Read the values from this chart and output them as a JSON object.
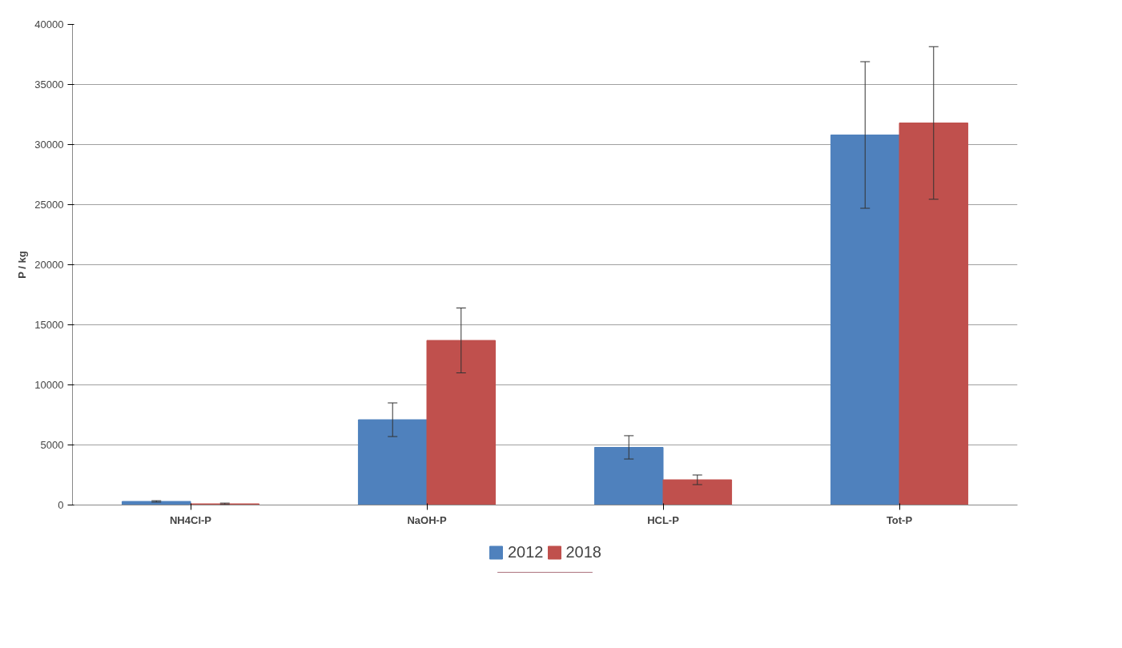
{
  "chart_data": {
    "type": "bar",
    "ylabel": "P / kg",
    "categories": [
      "NH4Cl-P",
      "NaOH-P",
      "HCL-P",
      "Tot-P"
    ],
    "series": [
      {
        "name": "2012",
        "color": "#4f81bd",
        "values": [
          300,
          7100,
          4800,
          30800
        ],
        "errors": [
          60,
          1400,
          970,
          6100
        ]
      },
      {
        "name": "2018",
        "color": "#c0504d",
        "values": [
          100,
          13700,
          2100,
          31800
        ],
        "errors": [
          60,
          2700,
          400,
          6350
        ]
      }
    ],
    "ylim": [
      0,
      40000
    ],
    "yticks": [
      0,
      5000,
      10000,
      15000,
      20000,
      25000,
      30000,
      35000,
      40000
    ],
    "grid": "y",
    "legend": "bottom"
  }
}
